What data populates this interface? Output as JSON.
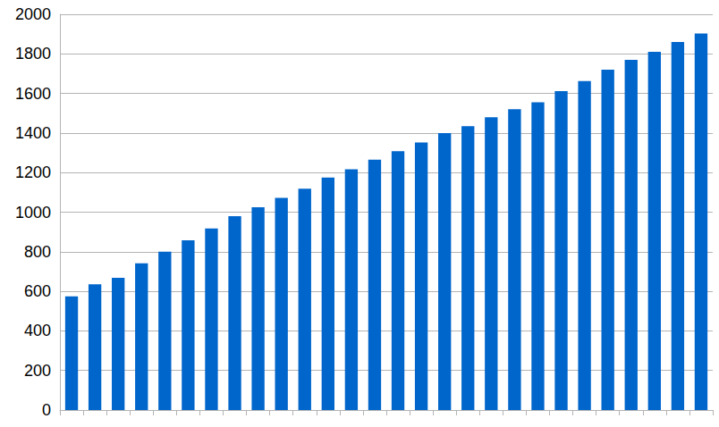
{
  "chart_data": {
    "type": "bar",
    "categories": [
      null,
      null,
      null,
      null,
      null,
      null,
      null,
      null,
      null,
      null,
      null,
      null,
      null,
      null,
      null,
      null,
      null,
      null,
      null,
      null,
      null,
      null,
      null,
      null,
      null,
      null,
      null,
      null
    ],
    "values": [
      575,
      635,
      668,
      742,
      800,
      858,
      918,
      980,
      1025,
      1072,
      1118,
      1175,
      1217,
      1265,
      1308,
      1352,
      1400,
      1435,
      1480,
      1520,
      1555,
      1612,
      1662,
      1720,
      1770,
      1810,
      1860,
      1903
    ],
    "color": "#0066cc",
    "ylim": [
      0,
      2000
    ],
    "yticks": [
      0,
      200,
      400,
      600,
      800,
      1000,
      1200,
      1400,
      1600,
      1800,
      2000
    ],
    "grid": true,
    "tick_labels": "y"
  }
}
